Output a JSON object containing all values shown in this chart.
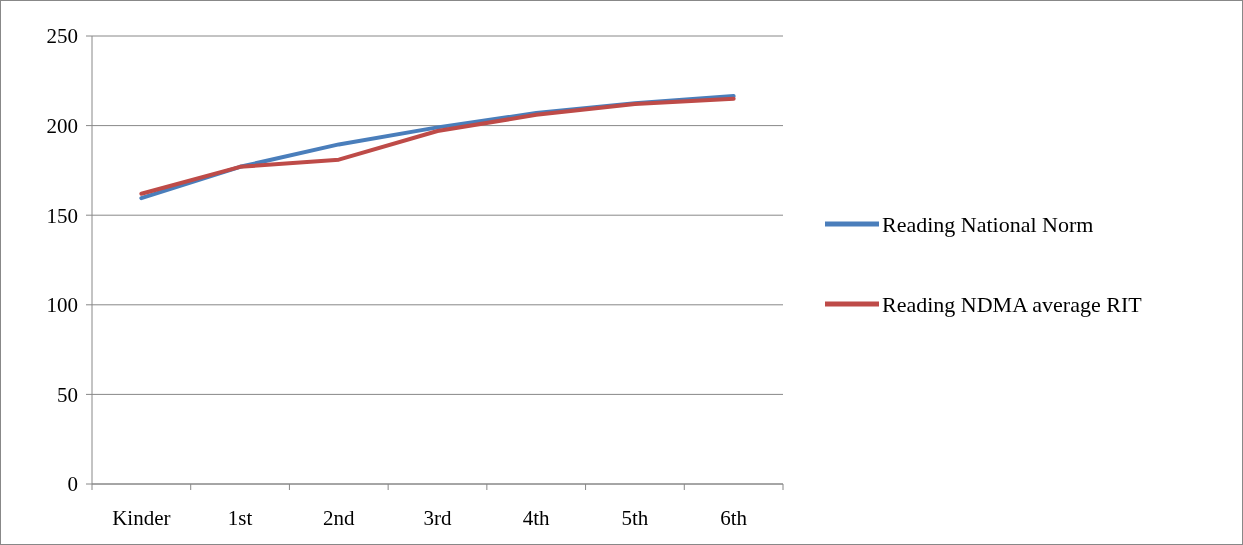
{
  "chart_data": {
    "type": "line",
    "categories": [
      "Kinder",
      "1st",
      "2nd",
      "3rd",
      "4th",
      "5th",
      "6th"
    ],
    "series": [
      {
        "name": "Reading National Norm",
        "color": "#4a7ebb",
        "values": [
          159.5,
          177,
          189.5,
          199,
          207,
          212.5,
          216.5
        ]
      },
      {
        "name": "Reading NDMA average RIT",
        "color": "#be4b48",
        "values": [
          162,
          177,
          181,
          197,
          206,
          212,
          215
        ]
      }
    ],
    "ylim": [
      0,
      250
    ],
    "yticks": [
      0,
      50,
      100,
      150,
      200,
      250
    ],
    "grid": "y",
    "legend": "right",
    "marker": "none",
    "line_style": "solid"
  }
}
